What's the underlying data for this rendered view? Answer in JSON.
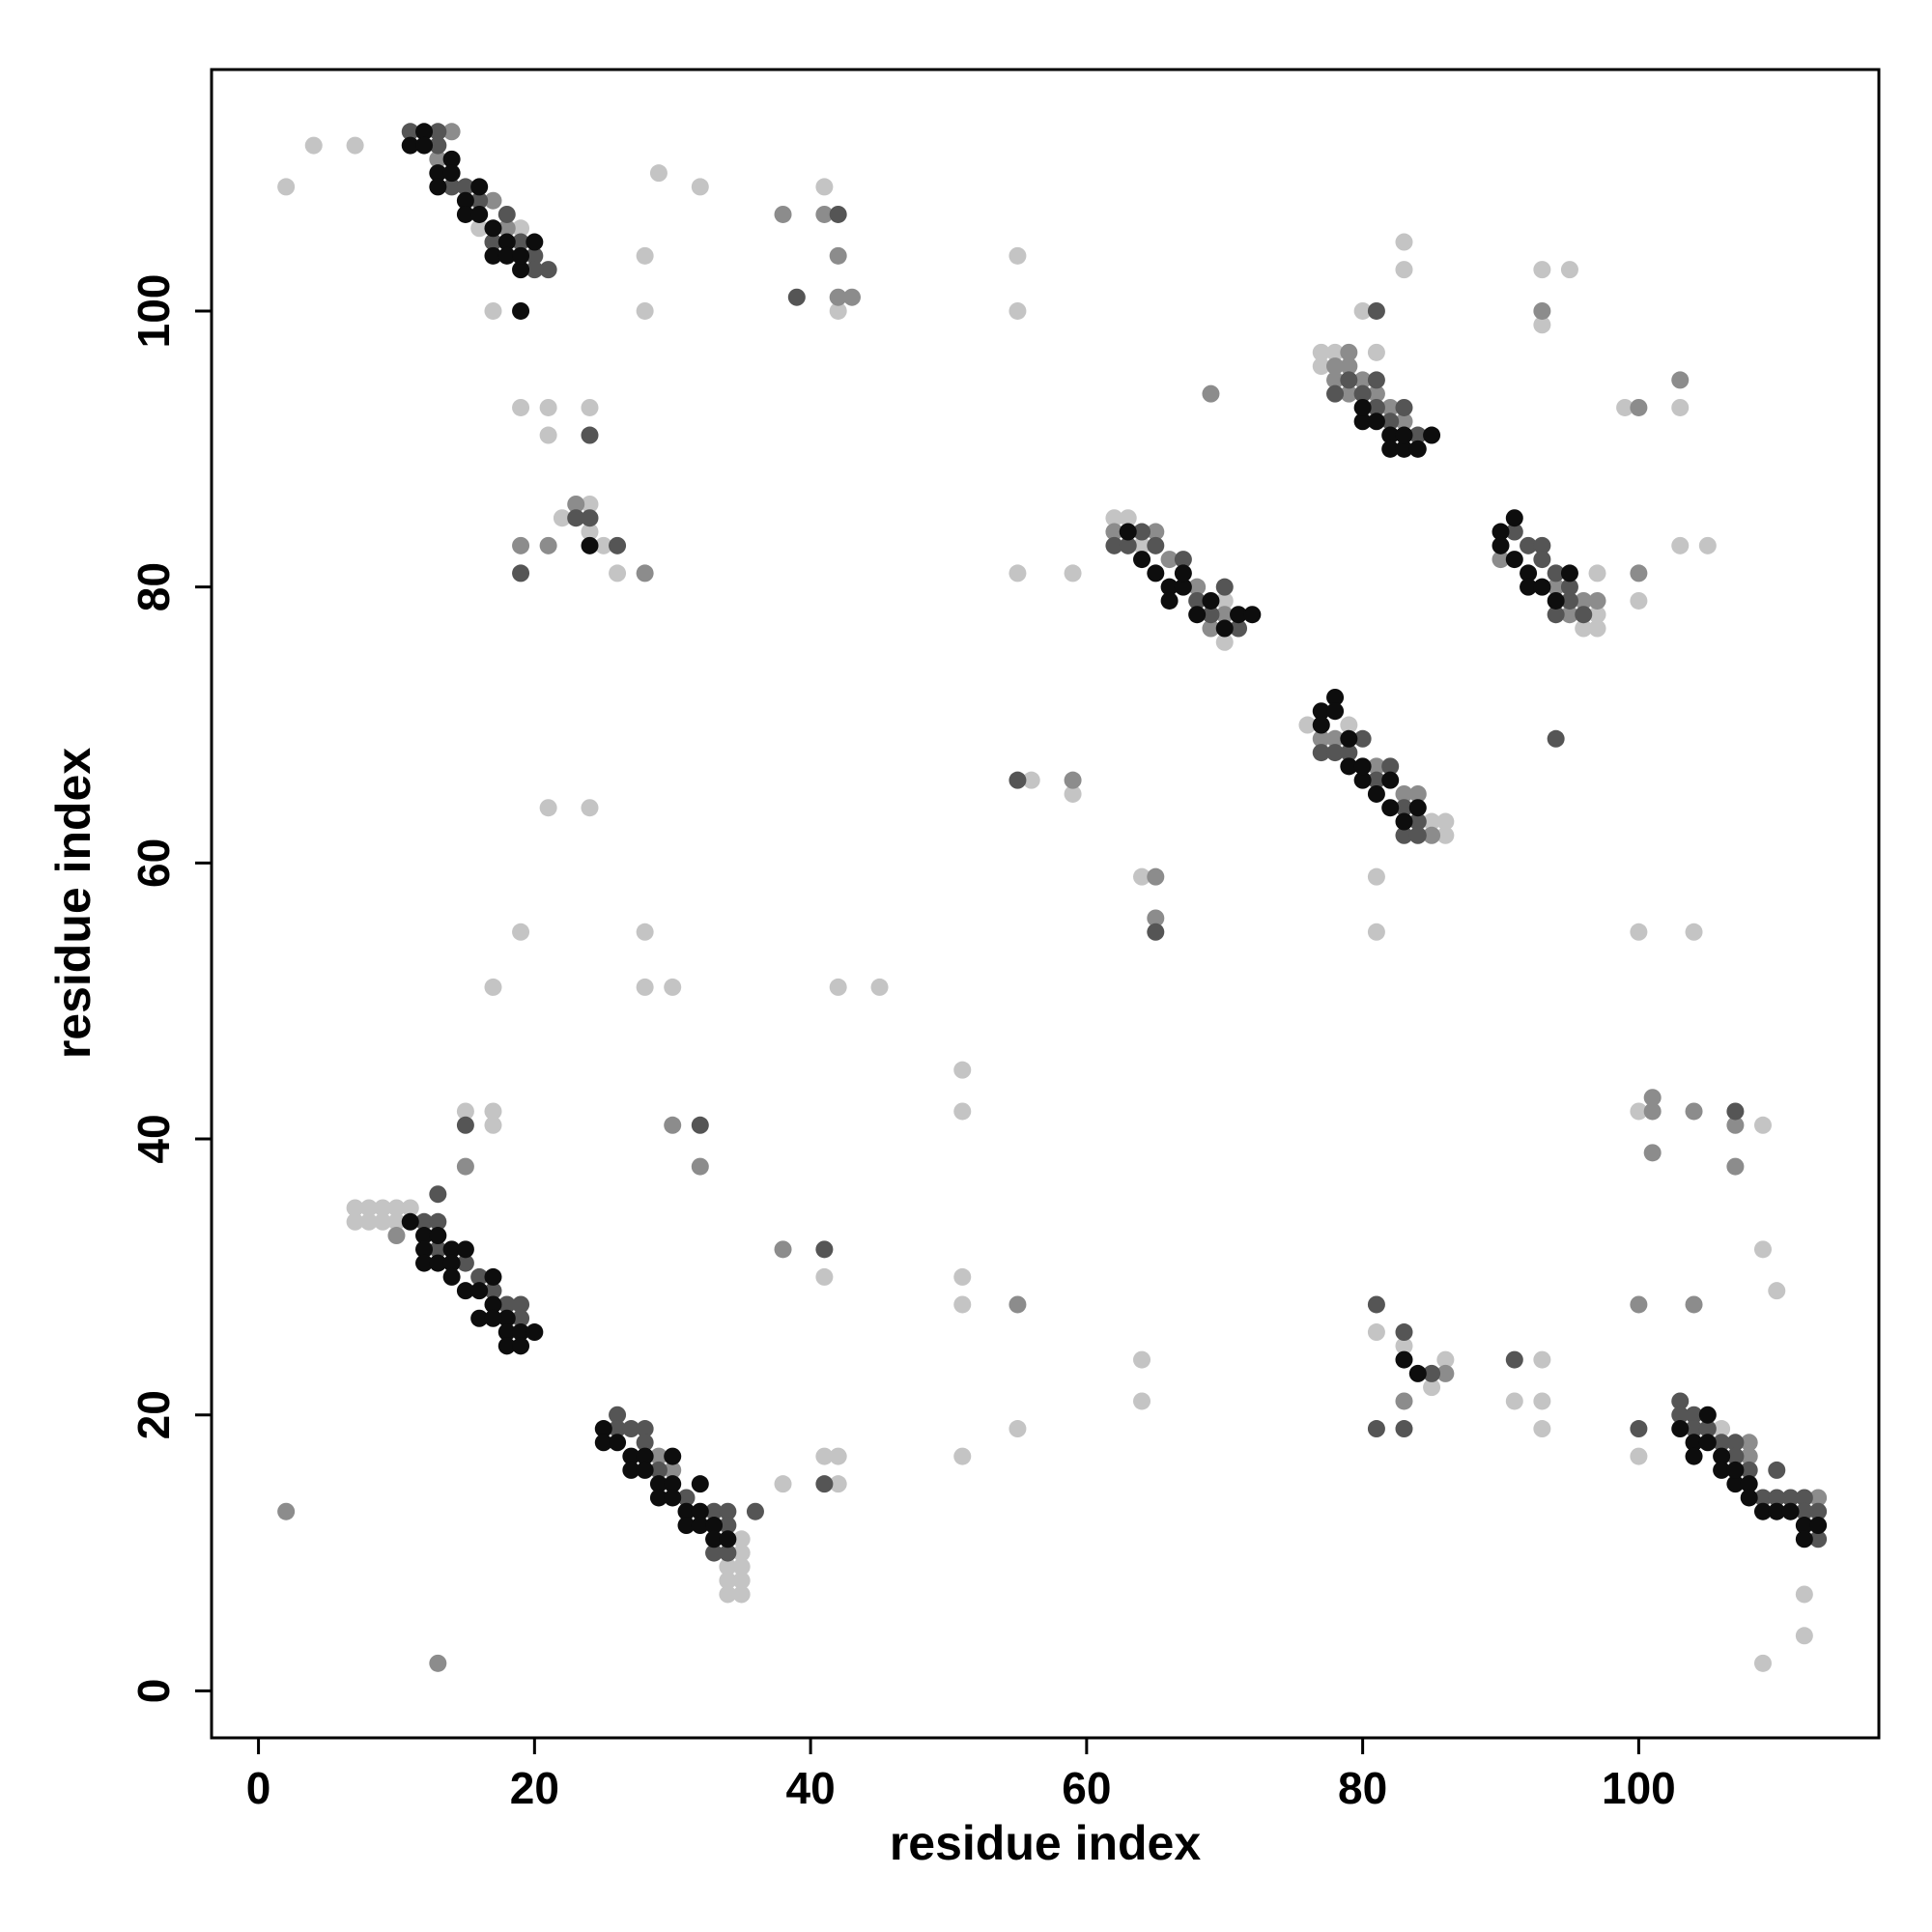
{
  "chart_data": {
    "type": "scatter",
    "x_label": "residue index",
    "y_label": "residue index",
    "xlim": [
      -3.4,
      117.4
    ],
    "ylim": [
      -3.4,
      117.5
    ],
    "xticks": [
      0,
      20,
      40,
      60,
      80,
      100
    ],
    "yticks": [
      0,
      20,
      40,
      60,
      80,
      100
    ],
    "grid": false,
    "series": [
      {
        "color": "#c4c4c4",
        "x": [
          2,
          4,
          7,
          16,
          17,
          19,
          17,
          29,
          32,
          28,
          28,
          41,
          42,
          55,
          55,
          83,
          83,
          93,
          93,
          95,
          80,
          19,
          21,
          24,
          21,
          22,
          24,
          24,
          25,
          26,
          77,
          77,
          78,
          81,
          99,
          103,
          103,
          105,
          100,
          62,
          63,
          70,
          70,
          64,
          55,
          59,
          96,
          97,
          97,
          97,
          76,
          79,
          85,
          86,
          86,
          56,
          59,
          64,
          81,
          81,
          21,
          24,
          19,
          28,
          17,
          28,
          30,
          42,
          45,
          100,
          104,
          51,
          51,
          7,
          7,
          8,
          8,
          9,
          9,
          10,
          11,
          10,
          15,
          17,
          17,
          34,
          34,
          34,
          35,
          35,
          35,
          35,
          35,
          41,
          38,
          41,
          42,
          42,
          51,
          51,
          51,
          55,
          64,
          64,
          81,
          83,
          85,
          86,
          91,
          93,
          93,
          93,
          100,
          109,
          109,
          110,
          100,
          106,
          112,
          112,
          109
        ],
        "values": [
          109,
          112,
          112,
          106,
          100,
          106,
          105,
          110,
          109,
          104,
          100,
          109,
          100,
          104,
          100,
          105,
          103,
          103,
          99,
          103,
          100,
          93,
          93,
          93,
          91,
          85,
          86,
          84,
          83,
          81,
          97,
          96,
          97,
          97,
          93,
          93,
          83,
          83,
          79,
          85,
          85,
          76,
          79,
          83,
          81,
          81,
          77,
          77,
          78,
          81,
          70,
          70,
          63,
          62,
          63,
          66,
          65,
          59,
          59,
          55,
          64,
          64,
          55,
          55,
          51,
          51,
          51,
          51,
          51,
          55,
          55,
          45,
          42,
          35,
          34,
          35,
          34,
          35,
          34,
          35,
          35,
          34,
          42,
          42,
          41,
          9,
          8,
          7,
          11,
          10,
          9,
          8,
          7,
          30,
          15,
          17,
          17,
          15,
          30,
          28,
          17,
          19,
          24,
          21,
          26,
          25,
          22,
          24,
          21,
          24,
          21,
          19,
          42,
          41,
          32,
          29,
          17,
          19,
          7,
          4,
          2
        ]
      },
      {
        "color": "#8c8c8c",
        "x": [
          14,
          13,
          17,
          18,
          38,
          41,
          42,
          43,
          42,
          93,
          23,
          19,
          21,
          28,
          78,
          79,
          78,
          79,
          79,
          80,
          81,
          82,
          83,
          69,
          100,
          103,
          100,
          62,
          65,
          66,
          68,
          69,
          70,
          90,
          94,
          96,
          97,
          95,
          77,
          78,
          81,
          83,
          84,
          85,
          59,
          65,
          65,
          10,
          15,
          30,
          32,
          2,
          13,
          38,
          55,
          29,
          30,
          83,
          86,
          100,
          104,
          101,
          101,
          101,
          104,
          107,
          107,
          108,
          108,
          113
        ],
        "values": [
          113,
          111,
          108,
          106,
          107,
          107,
          104,
          101,
          101,
          100,
          86,
          83,
          83,
          81,
          96,
          97,
          95,
          96,
          94,
          95,
          94,
          93,
          92,
          94,
          93,
          95,
          81,
          84,
          84,
          82,
          80,
          77,
          78,
          82,
          80,
          79,
          79,
          78,
          69,
          69,
          67,
          65,
          65,
          62,
          66,
          59,
          56,
          33,
          38,
          41,
          38,
          13,
          2,
          32,
          28,
          17,
          16,
          21,
          23,
          28,
          28,
          43,
          42,
          39,
          42,
          41,
          38,
          17,
          18,
          14
        ]
      },
      {
        "color": "#555555",
        "x": [
          11,
          13,
          14,
          15,
          16,
          18,
          17,
          19,
          20,
          21,
          20,
          13,
          39,
          42,
          81,
          24,
          23,
          24,
          26,
          19,
          78,
          79,
          80,
          81,
          83,
          82,
          84,
          81,
          62,
          63,
          64,
          65,
          67,
          68,
          70,
          71,
          69,
          91,
          92,
          93,
          93,
          94,
          94,
          95,
          96,
          95,
          94,
          77,
          78,
          79,
          80,
          81,
          82,
          83,
          84,
          83,
          84,
          55,
          65,
          12,
          13,
          13,
          13,
          15,
          16,
          17,
          18,
          19,
          19,
          15,
          32,
          41,
          41,
          26,
          26,
          27,
          28,
          28,
          29,
          31,
          33,
          34,
          34,
          34,
          36,
          33,
          81,
          83,
          85,
          81,
          83,
          91,
          107,
          100,
          103,
          103,
          104,
          104,
          105,
          106,
          107,
          107,
          108,
          109,
          110,
          111,
          112,
          112,
          113,
          113,
          110
        ],
        "values": [
          113,
          113,
          109,
          109,
          108,
          107,
          105,
          105,
          104,
          103,
          103,
          112,
          101,
          107,
          100,
          91,
          85,
          85,
          83,
          81,
          94,
          95,
          94,
          95,
          93,
          92,
          91,
          93,
          83,
          83,
          84,
          83,
          82,
          79,
          80,
          77,
          78,
          84,
          83,
          83,
          82,
          81,
          78,
          79,
          78,
          80,
          69,
          68,
          68,
          68,
          69,
          66,
          67,
          64,
          63,
          62,
          62,
          66,
          55,
          34,
          36,
          34,
          32,
          31,
          30,
          29,
          28,
          28,
          27,
          41,
          41,
          32,
          15,
          20,
          19,
          19,
          19,
          18,
          16,
          14,
          13,
          13,
          12,
          10,
          13,
          10,
          28,
          26,
          23,
          19,
          19,
          24,
          42,
          19,
          21,
          20,
          20,
          19,
          19,
          18,
          18,
          17,
          16,
          14,
          16,
          14,
          14,
          13,
          11,
          13,
          14
        ]
      },
      {
        "color": "#0d0d0d",
        "x": [
          11,
          12,
          12,
          13,
          13,
          14,
          14,
          15,
          15,
          16,
          16,
          17,
          17,
          18,
          18,
          19,
          19,
          20,
          19,
          24,
          80,
          81,
          82,
          82,
          83,
          84,
          85,
          83,
          80,
          63,
          64,
          65,
          66,
          66,
          67,
          67,
          68,
          69,
          70,
          71,
          72,
          90,
          90,
          91,
          91,
          92,
          92,
          93,
          94,
          95,
          77,
          78,
          77,
          78,
          79,
          79,
          80,
          80,
          81,
          82,
          82,
          83,
          84,
          11,
          12,
          12,
          12,
          13,
          13,
          14,
          14,
          14,
          15,
          15,
          16,
          16,
          17,
          17,
          18,
          18,
          18,
          19,
          19,
          20,
          17,
          25,
          25,
          26,
          27,
          27,
          28,
          28,
          29,
          29,
          30,
          30,
          30,
          31,
          31,
          32,
          32,
          32,
          33,
          33,
          34,
          83,
          84,
          103,
          104,
          105,
          105,
          106,
          106,
          107,
          107,
          108,
          108,
          109,
          110,
          111,
          112,
          112,
          113,
          104
        ],
        "values": [
          112,
          113,
          112,
          110,
          109,
          111,
          110,
          108,
          107,
          109,
          107,
          106,
          104,
          105,
          104,
          103,
          104,
          105,
          100,
          83,
          92,
          92,
          91,
          90,
          90,
          90,
          91,
          91,
          93,
          84,
          82,
          81,
          80,
          79,
          80,
          81,
          78,
          79,
          77,
          78,
          78,
          84,
          83,
          85,
          82,
          81,
          80,
          80,
          79,
          81,
          71,
          72,
          70,
          71,
          69,
          67,
          66,
          67,
          65,
          64,
          66,
          63,
          64,
          34,
          33,
          32,
          31,
          33,
          31,
          32,
          31,
          30,
          32,
          29,
          29,
          27,
          30,
          28,
          27,
          26,
          25,
          26,
          25,
          26,
          27,
          19,
          18,
          18,
          17,
          16,
          17,
          16,
          15,
          14,
          17,
          15,
          14,
          13,
          12,
          15,
          13,
          12,
          12,
          11,
          11,
          24,
          23,
          19,
          18,
          20,
          18,
          17,
          16,
          15,
          16,
          15,
          14,
          13,
          13,
          13,
          12,
          11,
          12,
          17
        ]
      }
    ]
  }
}
